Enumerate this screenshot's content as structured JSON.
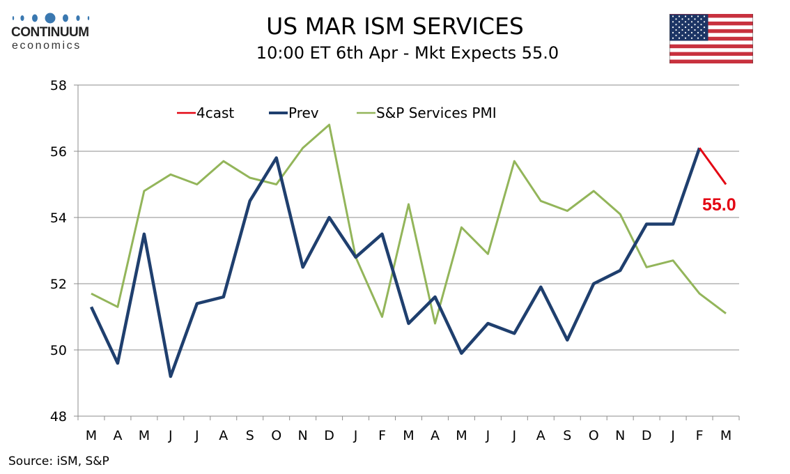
{
  "header": {
    "logo_word": "CONTINUUM",
    "logo_sub": "economics",
    "title": "US MAR ISM SERVICES",
    "subtitle": "10:00 ET 6th Apr - Mkt Expects 55.0",
    "flag_icon": "us-flag-icon"
  },
  "footer": {
    "source": "Source: iSM, S&P"
  },
  "colors": {
    "forecast": "#e30613",
    "prev": "#1f3f6e",
    "sp": "#93b55a",
    "grid": "#8c8c8c",
    "logo_blue": "#3a78b0"
  },
  "chart_data": {
    "type": "line",
    "title": "US MAR ISM SERVICES",
    "subtitle": "10:00 ET 6th Apr - Mkt Expects 55.0",
    "xlabel": "",
    "ylabel": "",
    "ylim": [
      48,
      58
    ],
    "yticks": [
      48,
      50,
      52,
      54,
      56,
      58
    ],
    "grid": true,
    "legend_position": "top",
    "categories": [
      "M",
      "A",
      "M",
      "J",
      "J",
      "A",
      "S",
      "O",
      "N",
      "D",
      "J",
      "F",
      "M",
      "A",
      "M",
      "J",
      "J",
      "A",
      "S",
      "O",
      "N",
      "D",
      "J",
      "F",
      "M"
    ],
    "series": [
      {
        "name": "4cast",
        "key": "forecast",
        "values": [
          null,
          null,
          null,
          null,
          null,
          null,
          null,
          null,
          null,
          null,
          null,
          null,
          null,
          null,
          null,
          null,
          null,
          null,
          null,
          null,
          null,
          null,
          null,
          56.1,
          55.0
        ]
      },
      {
        "name": "Prev",
        "key": "prev",
        "values": [
          51.3,
          49.6,
          53.5,
          49.2,
          51.4,
          51.6,
          54.5,
          55.8,
          52.5,
          54.0,
          52.8,
          53.5,
          50.8,
          51.6,
          49.9,
          50.8,
          50.5,
          51.9,
          50.3,
          52.0,
          52.4,
          53.8,
          53.8,
          56.1,
          null
        ]
      },
      {
        "name": "S&P Services PMI",
        "key": "sp",
        "values": [
          51.7,
          51.3,
          54.8,
          55.3,
          55.0,
          55.7,
          55.2,
          55.0,
          56.1,
          56.8,
          52.8,
          51.0,
          54.4,
          50.8,
          53.7,
          52.9,
          55.7,
          54.5,
          54.2,
          54.8,
          54.1,
          52.5,
          52.7,
          51.7,
          51.1
        ]
      }
    ],
    "annotations": [
      {
        "text": "55.0",
        "category_index": 24,
        "series": "forecast"
      }
    ]
  }
}
